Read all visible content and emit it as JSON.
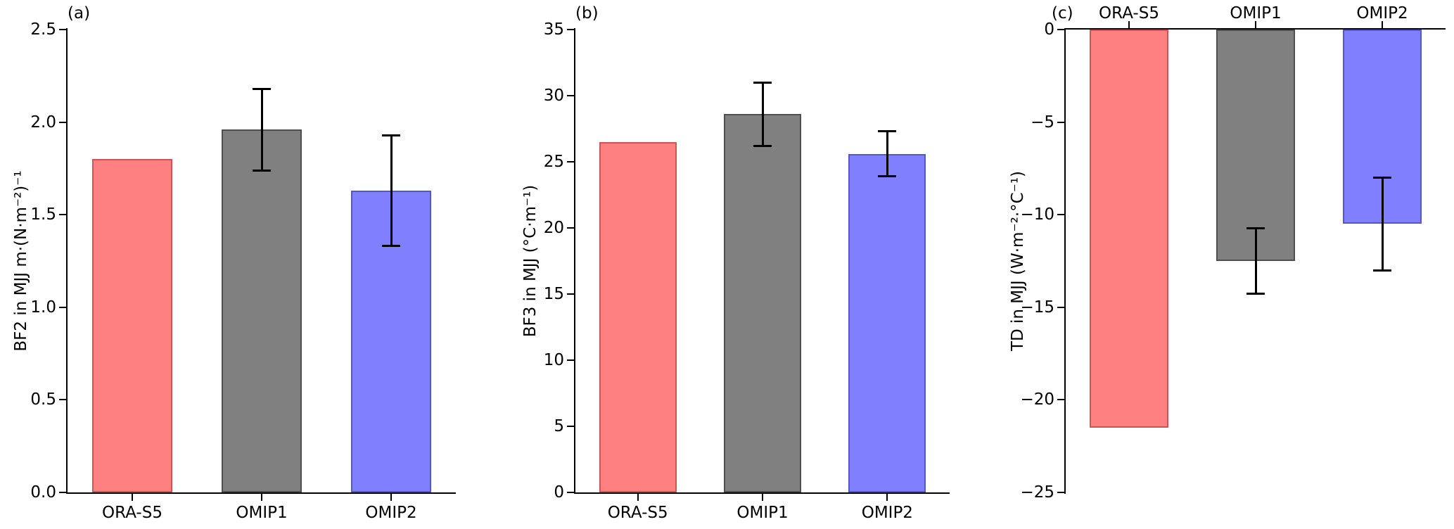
{
  "figure": {
    "background": "#ffffff"
  },
  "chart_data": [
    {
      "type": "bar",
      "panel_label": "(a)",
      "categories": [
        "ORA-S5",
        "OMIP1",
        "OMIP2"
      ],
      "values": [
        1.8,
        1.96,
        1.63
      ],
      "error_bars": [
        null,
        0.22,
        0.3
      ],
      "ylabel": "BF2 in MJJ m·(N·m⁻²)⁻¹",
      "ylim": [
        0,
        2.5
      ],
      "yticks": [
        0,
        0.5,
        1.0,
        1.5,
        2.0,
        2.5
      ],
      "ytick_labels": [
        "0.0",
        "0.5",
        "1.0",
        "1.5",
        "2.0",
        "2.5"
      ],
      "bar_fill_colors": [
        "#ff8080",
        "#808080",
        "#8080ff"
      ],
      "bar_edge_colors": [
        "#cc5555",
        "#4f4f4f",
        "#5555cc"
      ],
      "error_color": "#000000",
      "x_axis_side": "bottom",
      "grid": false
    },
    {
      "type": "bar",
      "panel_label": "(b)",
      "categories": [
        "ORA-S5",
        "OMIP1",
        "OMIP2"
      ],
      "values": [
        26.5,
        28.6,
        25.6
      ],
      "error_bars": [
        null,
        2.4,
        1.7
      ],
      "ylabel": "BF3 in MJJ (°C·m⁻¹)",
      "ylim": [
        0,
        35
      ],
      "yticks": [
        0,
        5,
        10,
        15,
        20,
        25,
        30,
        35
      ],
      "ytick_labels": [
        "0",
        "5",
        "10",
        "15",
        "20",
        "25",
        "30",
        "35"
      ],
      "bar_fill_colors": [
        "#ff8080",
        "#808080",
        "#8080ff"
      ],
      "bar_edge_colors": [
        "#cc5555",
        "#4f4f4f",
        "#5555cc"
      ],
      "error_color": "#000000",
      "x_axis_side": "bottom",
      "grid": false
    },
    {
      "type": "bar",
      "panel_label": "(c)",
      "categories": [
        "ORA-S5",
        "OMIP1",
        "OMIP2"
      ],
      "values": [
        -21.5,
        -12.5,
        -10.5
      ],
      "error_bars": [
        null,
        1.75,
        2.5
      ],
      "ylabel": "TD in MJJ (W·m⁻²·°C⁻¹)",
      "ylim": [
        -25,
        0
      ],
      "yticks": [
        0,
        -5,
        -10,
        -15,
        -20,
        -25
      ],
      "ytick_labels": [
        "0",
        "−5",
        "−10",
        "−15",
        "−20",
        "−25"
      ],
      "bar_fill_colors": [
        "#ff8080",
        "#808080",
        "#8080ff"
      ],
      "bar_edge_colors": [
        "#cc5555",
        "#4f4f4f",
        "#5555cc"
      ],
      "error_color": "#000000",
      "x_axis_side": "top",
      "grid": false
    }
  ]
}
